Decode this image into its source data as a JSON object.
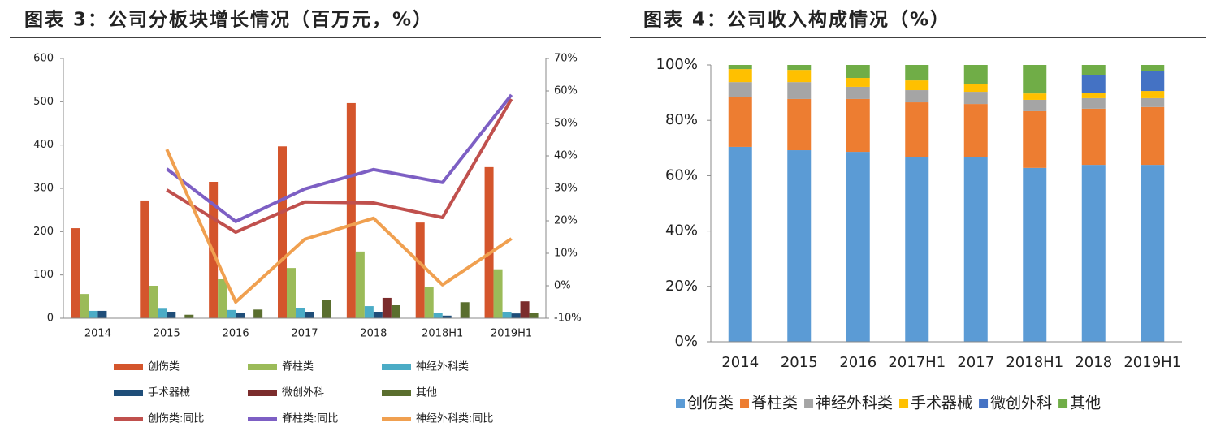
{
  "chart_data": [
    {
      "type": "bar",
      "title": "图表 3：公司分板块增长情况（百万元，%）",
      "categories": [
        "2014",
        "2015",
        "2016",
        "2017",
        "2018",
        "2018H1",
        "2019H1"
      ],
      "ylim": [
        0,
        600
      ],
      "yticks": [
        0,
        100,
        200,
        300,
        400,
        500,
        600
      ],
      "y2lim": [
        -10,
        70
      ],
      "y2ticks": [
        {
          "value": -10,
          "label": "-10%"
        },
        {
          "value": 0,
          "label": "0%"
        },
        {
          "value": 10,
          "label": "10%"
        },
        {
          "value": 20,
          "label": "20%"
        },
        {
          "value": 30,
          "label": "30%"
        },
        {
          "value": 40,
          "label": "40%"
        },
        {
          "value": 50,
          "label": "50%"
        },
        {
          "value": 60,
          "label": "60%"
        },
        {
          "value": 70,
          "label": "70%"
        }
      ],
      "series": [
        {
          "name": "创伤类",
          "color": "#d4552c",
          "values": [
            208,
            272,
            315,
            397,
            497,
            221,
            349
          ]
        },
        {
          "name": "脊柱类",
          "color": "#9bbb59",
          "values": [
            56,
            75,
            90,
            116,
            154,
            73,
            113
          ]
        },
        {
          "name": "神经外科类",
          "color": "#4bacc6",
          "values": [
            17,
            22,
            19,
            24,
            28,
            13,
            15
          ]
        },
        {
          "name": "手术器械",
          "color": "#1f4e79",
          "values": [
            17,
            15,
            13,
            15,
            15,
            6,
            11
          ]
        },
        {
          "name": "微创外科",
          "color": "#7b2c2c",
          "values": [
            null,
            null,
            null,
            null,
            47,
            null,
            39
          ]
        },
        {
          "name": "其他",
          "color": "#5a6e2e",
          "values": [
            null,
            8,
            20,
            43,
            30,
            37,
            13
          ]
        },
        {
          "name": "创伤类:同比",
          "color": "#c0504d",
          "type": "line",
          "axis": "y2",
          "values": [
            null,
            29.5,
            16.5,
            25.8,
            25.5,
            21,
            57.5
          ]
        },
        {
          "name": "脊柱类:同比",
          "color": "#7d5fc4",
          "type": "line",
          "axis": "y2",
          "values": [
            null,
            36,
            19.8,
            29.8,
            35.8,
            31.8,
            58.8
          ]
        },
        {
          "name": "神经外科类:同比",
          "color": "#f0a050",
          "type": "line",
          "axis": "y2",
          "values": [
            null,
            42,
            -5,
            14.3,
            20.8,
            0.3,
            14.5
          ]
        }
      ]
    },
    {
      "type": "stacked_bar",
      "title": "图表 4：公司收入构成情况（%）",
      "categories": [
        "2014",
        "2015",
        "2016",
        "2017H1",
        "2017",
        "2018H1",
        "2018",
        "2019H1"
      ],
      "ylim": [
        0,
        100
      ],
      "yticks": [
        {
          "value": 0,
          "label": "0%"
        },
        {
          "value": 20,
          "label": "20%"
        },
        {
          "value": 40,
          "label": "40%"
        },
        {
          "value": 60,
          "label": "60%"
        },
        {
          "value": 80,
          "label": "80%"
        },
        {
          "value": 100,
          "label": "100%"
        }
      ],
      "series": [
        {
          "name": "创伤类",
          "color": "#5b9bd5",
          "values": [
            70.4,
            69.2,
            68.6,
            66.6,
            66.6,
            62.8,
            63.9,
            63.9
          ]
        },
        {
          "name": "脊柱类",
          "color": "#ed7d31",
          "values": [
            17.9,
            18.5,
            19.1,
            19.9,
            19.3,
            20.5,
            20.3,
            20.9
          ]
        },
        {
          "name": "神经外科类",
          "color": "#a5a5a5",
          "values": [
            5.5,
            6.1,
            4.4,
            4.4,
            4.4,
            4.1,
            3.8,
            3.2
          ]
        },
        {
          "name": "手术器械",
          "color": "#ffc000",
          "values": [
            4.7,
            4.4,
            3.2,
            3.5,
            2.7,
            2.3,
            2.0,
            2.6
          ]
        },
        {
          "name": "微创外科",
          "color": "#4472c4",
          "values": [
            0,
            0,
            0,
            0,
            0,
            0,
            6.2,
            7.1
          ]
        },
        {
          "name": "其他",
          "color": "#70ad47",
          "values": [
            1.5,
            1.8,
            4.7,
            5.6,
            7.0,
            10.3,
            3.8,
            2.3
          ]
        }
      ]
    }
  ]
}
